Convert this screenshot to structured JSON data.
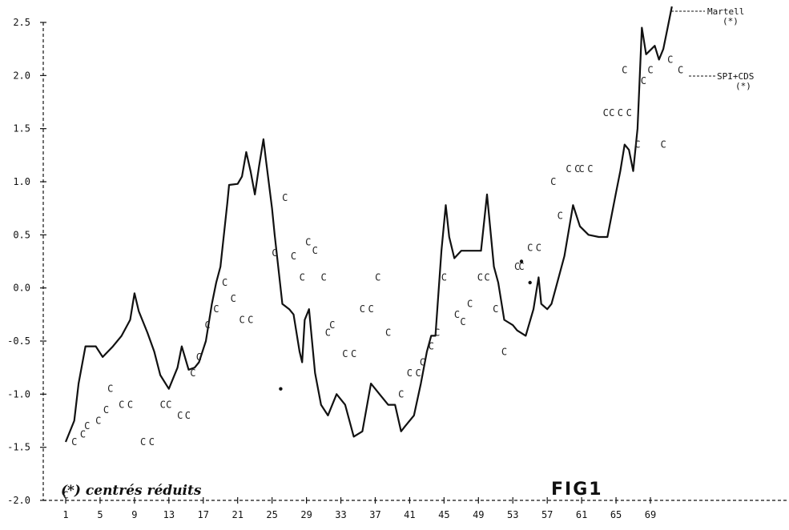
{
  "chart_data": {
    "type": "line",
    "title": "FIG1",
    "note": "(*) centrés réduits",
    "xlabel": "",
    "ylabel": "",
    "xlim": [
      1,
      73
    ],
    "ylim": [
      -2.0,
      2.5
    ],
    "x_ticks": [
      1,
      5,
      9,
      13,
      17,
      21,
      25,
      29,
      33,
      37,
      41,
      45,
      49,
      53,
      57,
      61,
      65,
      69
    ],
    "y_ticks": [
      {
        "value": -2.0,
        "label": "-2.0"
      },
      {
        "value": -1.5,
        "label": "-1.5"
      },
      {
        "value": -1.0,
        "label": "-1.0"
      },
      {
        "value": -0.5,
        "label": "-0.5"
      },
      {
        "value": 0.0,
        "label": "0.0"
      },
      {
        "value": 0.5,
        "label": "0.5"
      },
      {
        "value": 1.0,
        "label": "1.0"
      },
      {
        "value": 1.5,
        "label": "1.5"
      },
      {
        "value": 2.0,
        "label": "2.0"
      },
      {
        "value": 2.5,
        "label": "2.5"
      }
    ],
    "series": [
      {
        "name": "Martell",
        "name_sub": "(*)",
        "style": "line",
        "points": [
          [
            1.0,
            -1.45
          ],
          [
            2.0,
            -1.25
          ],
          [
            2.5,
            -0.9
          ],
          [
            3.3,
            -0.55
          ],
          [
            4.5,
            -0.55
          ],
          [
            5.3,
            -0.65
          ],
          [
            6.5,
            -0.55
          ],
          [
            7.5,
            -0.45
          ],
          [
            8.5,
            -0.3
          ],
          [
            9.0,
            -0.05
          ],
          [
            9.5,
            -0.22
          ],
          [
            10.5,
            -0.42
          ],
          [
            11.3,
            -0.6
          ],
          [
            12.0,
            -0.82
          ],
          [
            13.0,
            -0.95
          ],
          [
            14.0,
            -0.75
          ],
          [
            14.5,
            -0.55
          ],
          [
            15.3,
            -0.77
          ],
          [
            16.0,
            -0.75
          ],
          [
            16.5,
            -0.7
          ],
          [
            17.3,
            -0.5
          ],
          [
            18.0,
            -0.15
          ],
          [
            18.5,
            0.05
          ],
          [
            19.0,
            0.2
          ],
          [
            19.8,
            0.8
          ],
          [
            20.0,
            0.97
          ],
          [
            21.0,
            0.98
          ],
          [
            21.5,
            1.05
          ],
          [
            22.0,
            1.28
          ],
          [
            22.5,
            1.1
          ],
          [
            23.0,
            0.88
          ],
          [
            23.5,
            1.15
          ],
          [
            24.0,
            1.4
          ],
          [
            24.3,
            1.2
          ],
          [
            25.0,
            0.75
          ],
          [
            25.3,
            0.5
          ],
          [
            26.2,
            -0.15
          ],
          [
            27.0,
            -0.2
          ],
          [
            27.5,
            -0.25
          ],
          [
            28.2,
            -0.6
          ],
          [
            28.5,
            -0.7
          ],
          [
            28.8,
            -0.3
          ],
          [
            29.3,
            -0.2
          ],
          [
            30.0,
            -0.8
          ],
          [
            30.7,
            -1.1
          ],
          [
            31.5,
            -1.2
          ],
          [
            32.5,
            -1.0
          ],
          [
            33.5,
            -1.1
          ],
          [
            34.5,
            -1.4
          ],
          [
            35.5,
            -1.35
          ],
          [
            36.5,
            -0.9
          ],
          [
            37.5,
            -1.0
          ],
          [
            38.5,
            -1.1
          ],
          [
            39.3,
            -1.1
          ],
          [
            40.0,
            -1.35
          ],
          [
            40.5,
            -1.3
          ],
          [
            41.5,
            -1.2
          ],
          [
            42.3,
            -0.9
          ],
          [
            43.0,
            -0.6
          ],
          [
            43.5,
            -0.45
          ],
          [
            44.0,
            -0.45
          ],
          [
            44.7,
            0.35
          ],
          [
            45.2,
            0.78
          ],
          [
            45.6,
            0.48
          ],
          [
            46.2,
            0.28
          ],
          [
            47.0,
            0.35
          ],
          [
            48.5,
            0.35
          ],
          [
            49.3,
            0.35
          ],
          [
            50.0,
            0.88
          ],
          [
            50.8,
            0.2
          ],
          [
            51.3,
            0.05
          ],
          [
            52.0,
            -0.3
          ],
          [
            53.0,
            -0.35
          ],
          [
            53.5,
            -0.4
          ],
          [
            54.5,
            -0.45
          ],
          [
            55.4,
            -0.2
          ],
          [
            56.0,
            0.1
          ],
          [
            56.3,
            -0.15
          ],
          [
            57.0,
            -0.2
          ],
          [
            57.5,
            -0.15
          ],
          [
            58.0,
            0.0
          ],
          [
            59.0,
            0.3
          ],
          [
            60.0,
            0.78
          ],
          [
            60.8,
            0.58
          ],
          [
            61.8,
            0.5
          ],
          [
            63.0,
            0.48
          ],
          [
            64.0,
            0.48
          ],
          [
            65.0,
            0.9
          ],
          [
            65.5,
            1.1
          ],
          [
            66.0,
            1.35
          ],
          [
            66.5,
            1.3
          ],
          [
            67.0,
            1.1
          ],
          [
            67.5,
            1.5
          ],
          [
            68.0,
            2.45
          ],
          [
            68.5,
            2.2
          ],
          [
            69.5,
            2.28
          ],
          [
            70.0,
            2.15
          ],
          [
            70.5,
            2.25
          ],
          [
            71.0,
            2.45
          ],
          [
            71.5,
            2.65
          ]
        ]
      },
      {
        "name": "SPI+CDS",
        "name_sub": "(*)",
        "style": "markers",
        "marker": "C",
        "points": [
          [
            1.0,
            -1.95
          ],
          [
            2.0,
            -1.45
          ],
          [
            3.0,
            -1.38
          ],
          [
            3.5,
            -1.3
          ],
          [
            4.8,
            -1.25
          ],
          [
            5.7,
            -1.15
          ],
          [
            6.2,
            -0.95
          ],
          [
            7.5,
            -1.1
          ],
          [
            8.5,
            -1.1
          ],
          [
            10.0,
            -1.45
          ],
          [
            11.0,
            -1.45
          ],
          [
            12.3,
            -1.1
          ],
          [
            13.0,
            -1.1
          ],
          [
            14.3,
            -1.2
          ],
          [
            15.2,
            -1.2
          ],
          [
            15.8,
            -0.8
          ],
          [
            16.5,
            -0.65
          ],
          [
            17.5,
            -0.35
          ],
          [
            18.5,
            -0.2
          ],
          [
            19.5,
            0.05
          ],
          [
            20.5,
            -0.1
          ],
          [
            21.5,
            -0.3
          ],
          [
            22.5,
            -0.3
          ],
          [
            25.3,
            0.33
          ],
          [
            26.5,
            0.85
          ],
          [
            27.5,
            0.3
          ],
          [
            28.5,
            0.1
          ],
          [
            29.2,
            0.43
          ],
          [
            30.0,
            0.35
          ],
          [
            31.0,
            0.1
          ],
          [
            31.5,
            -0.42
          ],
          [
            32.0,
            -0.35
          ],
          [
            33.5,
            -0.62
          ],
          [
            34.5,
            -0.62
          ],
          [
            35.5,
            -0.2
          ],
          [
            36.5,
            -0.2
          ],
          [
            37.3,
            0.1
          ],
          [
            38.5,
            -0.42
          ],
          [
            40.0,
            -1.0
          ],
          [
            41.0,
            -0.8
          ],
          [
            42.0,
            -0.8
          ],
          [
            42.5,
            -0.7
          ],
          [
            43.5,
            -0.55
          ],
          [
            44.2,
            -0.42
          ],
          [
            45.0,
            0.1
          ],
          [
            46.5,
            -0.25
          ],
          [
            47.2,
            -0.32
          ],
          [
            48.0,
            -0.15
          ],
          [
            49.2,
            0.1
          ],
          [
            50.0,
            0.1
          ],
          [
            51.0,
            -0.2
          ],
          [
            52.0,
            -0.6
          ],
          [
            53.5,
            0.2
          ],
          [
            54.0,
            0.2
          ],
          [
            55.0,
            0.38
          ],
          [
            56.0,
            0.38
          ],
          [
            57.7,
            1.0
          ],
          [
            58.5,
            0.68
          ],
          [
            59.5,
            1.12
          ],
          [
            60.5,
            1.12
          ],
          [
            61.0,
            1.12
          ],
          [
            62.0,
            1.12
          ],
          [
            63.8,
            1.65
          ],
          [
            64.5,
            1.65
          ],
          [
            65.5,
            1.65
          ],
          [
            66.5,
            1.65
          ],
          [
            66.0,
            2.05
          ],
          [
            67.5,
            1.35
          ],
          [
            68.2,
            1.95
          ],
          [
            69.0,
            2.05
          ],
          [
            70.5,
            1.35
          ],
          [
            71.3,
            2.15
          ],
          [
            72.5,
            2.05
          ]
        ]
      }
    ],
    "dots": [
      [
        26.0,
        -0.95
      ],
      [
        54.0,
        0.25
      ],
      [
        55.0,
        0.05
      ]
    ]
  }
}
